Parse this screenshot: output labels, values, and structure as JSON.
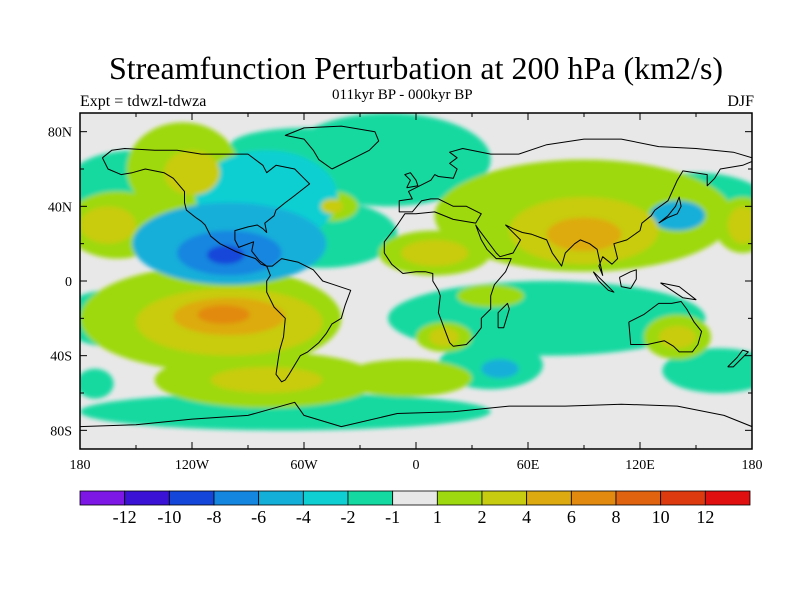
{
  "title": "Streamfunction Perturbation at 200 hPa (km2/s)",
  "subtitle": "011kyr BP - 000kyr BP",
  "left_label": "Expt = tdwzl-tdwza",
  "right_label": "DJF",
  "lat_ticks": [
    "80N",
    "40N",
    "0",
    "40S",
    "80S"
  ],
  "lon_ticks": [
    "180",
    "120W",
    "60W",
    "0",
    "60E",
    "120E",
    "180"
  ],
  "colorbar": {
    "colors": [
      "#7d17e6",
      "#3a12d6",
      "#1446d9",
      "#1486e0",
      "#14afd9",
      "#10cfd2",
      "#14d9a0",
      "#e8e8e8",
      "#9ed90f",
      "#c8cc10",
      "#ddab10",
      "#e28a10",
      "#e06410",
      "#de3a10",
      "#e01010"
    ],
    "labels": [
      "-12",
      "-10",
      "-8",
      "-6",
      "-4",
      "-2",
      "-1",
      "1",
      "2",
      "4",
      "6",
      "8",
      "10",
      "12"
    ]
  },
  "field_blobs": [
    {
      "lon": -100,
      "lat": 20,
      "rx": 52,
      "ry": 22,
      "level": -4
    },
    {
      "lon": -100,
      "lat": 15,
      "rx": 28,
      "ry": 12,
      "level": -6
    },
    {
      "lon": -102,
      "lat": 14,
      "rx": 10,
      "ry": 5,
      "level": -8
    },
    {
      "lon": -80,
      "lat": 45,
      "rx": 38,
      "ry": 25,
      "level": -3
    },
    {
      "lon": -50,
      "lat": 25,
      "rx": 40,
      "ry": 18,
      "level": -2
    },
    {
      "lon": -150,
      "lat": 55,
      "rx": 35,
      "ry": 15,
      "level": -2
    },
    {
      "lon": -175,
      "lat": 48,
      "rx": 10,
      "ry": 12,
      "level": -2
    },
    {
      "lon": -15,
      "lat": 65,
      "rx": 55,
      "ry": 25,
      "level": -2
    },
    {
      "lon": -60,
      "lat": 72,
      "rx": 40,
      "ry": 10,
      "level": -2
    },
    {
      "lon": 70,
      "lat": -20,
      "rx": 85,
      "ry": 20,
      "level": -2
    },
    {
      "lon": 40,
      "lat": -45,
      "rx": 28,
      "ry": 13,
      "level": -2
    },
    {
      "lon": 45,
      "lat": -47,
      "rx": 10,
      "ry": 5,
      "level": -4
    },
    {
      "lon": 150,
      "lat": 40,
      "rx": 40,
      "ry": 18,
      "level": -2
    },
    {
      "lon": 140,
      "lat": 35,
      "rx": 15,
      "ry": 8,
      "level": -4
    },
    {
      "lon": 162,
      "lat": -48,
      "rx": 30,
      "ry": 12,
      "level": -2
    },
    {
      "lon": -165,
      "lat": -20,
      "rx": 25,
      "ry": 15,
      "level": -2
    },
    {
      "lon": -172,
      "lat": -55,
      "rx": 10,
      "ry": 8,
      "level": -2
    },
    {
      "lon": -70,
      "lat": -70,
      "rx": 110,
      "ry": 10,
      "level": -2
    },
    {
      "lon": -110,
      "lat": -20,
      "rx": 70,
      "ry": 28,
      "level": 2
    },
    {
      "lon": -100,
      "lat": -22,
      "rx": 50,
      "ry": 18,
      "level": 4
    },
    {
      "lon": -100,
      "lat": -19,
      "rx": 30,
      "ry": 10,
      "level": 6
    },
    {
      "lon": -103,
      "lat": -18,
      "rx": 14,
      "ry": 5,
      "level": 8
    },
    {
      "lon": -80,
      "lat": -53,
      "rx": 60,
      "ry": 15,
      "level": 2
    },
    {
      "lon": -80,
      "lat": -53,
      "rx": 30,
      "ry": 7,
      "level": 4
    },
    {
      "lon": -140,
      "lat": -38,
      "rx": 15,
      "ry": 6,
      "level": 2
    },
    {
      "lon": -125,
      "lat": 60,
      "rx": 30,
      "ry": 25,
      "level": 2
    },
    {
      "lon": -120,
      "lat": 58,
      "rx": 15,
      "ry": 12,
      "level": 4
    },
    {
      "lon": -160,
      "lat": 30,
      "rx": 28,
      "ry": 18,
      "level": 2
    },
    {
      "lon": -165,
      "lat": 30,
      "rx": 15,
      "ry": 10,
      "level": 4
    },
    {
      "lon": -45,
      "lat": 40,
      "rx": 14,
      "ry": 8,
      "level": 2
    },
    {
      "lon": -45,
      "lat": 40,
      "rx": 6,
      "ry": 4,
      "level": 4
    },
    {
      "lon": 10,
      "lat": 15,
      "rx": 30,
      "ry": 12,
      "level": 2
    },
    {
      "lon": 10,
      "lat": 15,
      "rx": 18,
      "ry": 7,
      "level": 4
    },
    {
      "lon": 90,
      "lat": 35,
      "rx": 80,
      "ry": 30,
      "level": 2
    },
    {
      "lon": 90,
      "lat": 27,
      "rx": 40,
      "ry": 18,
      "level": 4
    },
    {
      "lon": 90,
      "lat": 25,
      "rx": 20,
      "ry": 9,
      "level": 6
    },
    {
      "lon": 15,
      "lat": -30,
      "rx": 15,
      "ry": 8,
      "level": 2
    },
    {
      "lon": 15,
      "lat": -30,
      "rx": 8,
      "ry": 5,
      "level": 4
    },
    {
      "lon": 140,
      "lat": -30,
      "rx": 18,
      "ry": 12,
      "level": 2
    },
    {
      "lon": 140,
      "lat": -30,
      "rx": 10,
      "ry": 6,
      "level": 4
    },
    {
      "lon": -5,
      "lat": -52,
      "rx": 35,
      "ry": 10,
      "level": 2
    },
    {
      "lon": 175,
      "lat": 30,
      "rx": 15,
      "ry": 15,
      "level": 2
    },
    {
      "lon": 175,
      "lat": 30,
      "rx": 8,
      "ry": 10,
      "level": 4
    },
    {
      "lon": 40,
      "lat": -8,
      "rx": 18,
      "ry": 6,
      "level": 2
    }
  ],
  "coastlines": {
    "north_america": [
      [
        -168,
        66
      ],
      [
        -163,
        70
      ],
      [
        -156,
        71
      ],
      [
        -140,
        70
      ],
      [
        -128,
        70
      ],
      [
        -115,
        68
      ],
      [
        -100,
        68
      ],
      [
        -90,
        68
      ],
      [
        -82,
        62
      ],
      [
        -80,
        58
      ],
      [
        -75,
        62
      ],
      [
        -65,
        60
      ],
      [
        -60,
        55
      ],
      [
        -57,
        52
      ],
      [
        -66,
        45
      ],
      [
        -70,
        42
      ],
      [
        -75,
        38
      ],
      [
        -76,
        35
      ],
      [
        -81,
        31
      ],
      [
        -80,
        26
      ],
      [
        -82,
        28
      ],
      [
        -85,
        30
      ],
      [
        -90,
        29
      ],
      [
        -97,
        27
      ],
      [
        -97,
        22
      ],
      [
        -95,
        18
      ],
      [
        -87,
        21
      ],
      [
        -88,
        16
      ],
      [
        -84,
        11
      ],
      [
        -80,
        8
      ],
      [
        -83,
        9
      ],
      [
        -86,
        12
      ],
      [
        -92,
        14
      ],
      [
        -97,
        16
      ],
      [
        -105,
        20
      ],
      [
        -110,
        24
      ],
      [
        -113,
        30
      ],
      [
        -115,
        32
      ],
      [
        -118,
        34
      ],
      [
        -123,
        38
      ],
      [
        -124,
        42
      ],
      [
        -124,
        48
      ],
      [
        -130,
        55
      ],
      [
        -135,
        58
      ],
      [
        -145,
        60
      ],
      [
        -152,
        58
      ],
      [
        -158,
        57
      ],
      [
        -165,
        60
      ],
      [
        -168,
        66
      ]
    ],
    "greenland": [
      [
        -45,
        60
      ],
      [
        -52,
        65
      ],
      [
        -55,
        70
      ],
      [
        -60,
        76
      ],
      [
        -70,
        78
      ],
      [
        -60,
        82
      ],
      [
        -40,
        83
      ],
      [
        -22,
        80
      ],
      [
        -20,
        75
      ],
      [
        -25,
        70
      ],
      [
        -35,
        65
      ],
      [
        -45,
        60
      ]
    ],
    "south_america": [
      [
        -80,
        8
      ],
      [
        -77,
        8
      ],
      [
        -72,
        12
      ],
      [
        -63,
        10
      ],
      [
        -55,
        6
      ],
      [
        -50,
        0
      ],
      [
        -44,
        -2
      ],
      [
        -35,
        -5
      ],
      [
        -38,
        -13
      ],
      [
        -40,
        -20
      ],
      [
        -45,
        -23
      ],
      [
        -48,
        -28
      ],
      [
        -52,
        -33
      ],
      [
        -58,
        -38
      ],
      [
        -62,
        -40
      ],
      [
        -65,
        -45
      ],
      [
        -68,
        -50
      ],
      [
        -70,
        -53
      ],
      [
        -72,
        -54
      ],
      [
        -75,
        -50
      ],
      [
        -74,
        -43
      ],
      [
        -73,
        -37
      ],
      [
        -71,
        -30
      ],
      [
        -70,
        -20
      ],
      [
        -76,
        -14
      ],
      [
        -80,
        -6
      ],
      [
        -80,
        0
      ],
      [
        -78,
        3
      ],
      [
        -80,
        8
      ]
    ],
    "africa_eurasia": [
      [
        -17,
        15
      ],
      [
        -17,
        21
      ],
      [
        -10,
        30
      ],
      [
        -6,
        36
      ],
      [
        0,
        36
      ],
      [
        10,
        37
      ],
      [
        20,
        33
      ],
      [
        32,
        31
      ],
      [
        35,
        36
      ],
      [
        27,
        40
      ],
      [
        20,
        40
      ],
      [
        12,
        44
      ],
      [
        8,
        44
      ],
      [
        3,
        43
      ],
      [
        -2,
        37
      ],
      [
        -9,
        37
      ],
      [
        -9,
        43
      ],
      [
        -2,
        44
      ],
      [
        -4,
        48
      ],
      [
        2,
        51
      ],
      [
        8,
        54
      ],
      [
        10,
        57
      ],
      [
        12,
        56
      ],
      [
        20,
        55
      ],
      [
        22,
        60
      ],
      [
        18,
        63
      ],
      [
        22,
        66
      ],
      [
        18,
        69
      ],
      [
        25,
        71
      ],
      [
        40,
        68
      ],
      [
        55,
        68
      ],
      [
        70,
        73
      ],
      [
        90,
        76
      ],
      [
        110,
        76
      ],
      [
        130,
        72
      ],
      [
        150,
        71
      ],
      [
        170,
        69
      ],
      [
        180,
        66
      ],
      [
        180,
        64
      ],
      [
        175,
        62
      ],
      [
        163,
        60
      ],
      [
        160,
        55
      ],
      [
        156,
        51
      ],
      [
        156,
        57
      ],
      [
        143,
        59
      ],
      [
        140,
        54
      ],
      [
        135,
        43
      ],
      [
        128,
        38
      ],
      [
        126,
        35
      ],
      [
        121,
        31
      ],
      [
        120,
        27
      ],
      [
        113,
        22
      ],
      [
        106,
        20
      ],
      [
        108,
        12
      ],
      [
        105,
        9
      ],
      [
        100,
        13
      ],
      [
        98,
        8
      ],
      [
        100,
        3
      ],
      [
        97,
        17
      ],
      [
        93,
        20
      ],
      [
        88,
        22
      ],
      [
        85,
        20
      ],
      [
        80,
        15
      ],
      [
        78,
        8
      ],
      [
        73,
        15
      ],
      [
        70,
        22
      ],
      [
        62,
        25
      ],
      [
        57,
        26
      ],
      [
        52,
        28
      ],
      [
        48,
        30
      ],
      [
        54,
        24
      ],
      [
        56,
        22
      ],
      [
        52,
        15
      ],
      [
        45,
        13
      ],
      [
        43,
        15
      ],
      [
        34,
        27
      ],
      [
        32,
        30
      ],
      [
        35,
        22
      ],
      [
        38,
        17
      ],
      [
        43,
        12
      ],
      [
        51,
        12
      ],
      [
        48,
        5
      ],
      [
        42,
        -2
      ],
      [
        40,
        -8
      ],
      [
        40,
        -15
      ],
      [
        35,
        -20
      ],
      [
        35,
        -25
      ],
      [
        32,
        -29
      ],
      [
        27,
        -34
      ],
      [
        20,
        -35
      ],
      [
        18,
        -33
      ],
      [
        15,
        -25
      ],
      [
        12,
        -17
      ],
      [
        13,
        -8
      ],
      [
        12,
        -5
      ],
      [
        9,
        0
      ],
      [
        9,
        4
      ],
      [
        5,
        5
      ],
      [
        0,
        5
      ],
      [
        -7,
        4
      ],
      [
        -13,
        9
      ],
      [
        -17,
        15
      ]
    ],
    "australia": [
      [
        114,
        -22
      ],
      [
        122,
        -18
      ],
      [
        130,
        -12
      ],
      [
        137,
        -12
      ],
      [
        142,
        -11
      ],
      [
        145,
        -15
      ],
      [
        149,
        -22
      ],
      [
        153,
        -27
      ],
      [
        151,
        -34
      ],
      [
        148,
        -38
      ],
      [
        141,
        -38
      ],
      [
        138,
        -35
      ],
      [
        133,
        -32
      ],
      [
        124,
        -34
      ],
      [
        115,
        -34
      ],
      [
        114,
        -22
      ]
    ],
    "antarctica": [
      [
        -180,
        -78
      ],
      [
        -150,
        -77
      ],
      [
        -120,
        -74
      ],
      [
        -90,
        -72
      ],
      [
        -65,
        -65
      ],
      [
        -60,
        -72
      ],
      [
        -40,
        -78
      ],
      [
        -10,
        -71
      ],
      [
        20,
        -70
      ],
      [
        50,
        -67
      ],
      [
        80,
        -67
      ],
      [
        110,
        -66
      ],
      [
        140,
        -67
      ],
      [
        165,
        -72
      ],
      [
        180,
        -78
      ]
    ],
    "uk": [
      [
        -5,
        50
      ],
      [
        1,
        51
      ],
      [
        0,
        54
      ],
      [
        -3,
        58
      ],
      [
        -6,
        57
      ],
      [
        -3,
        54
      ],
      [
        -5,
        50
      ]
    ],
    "japan": [
      [
        130,
        31
      ],
      [
        135,
        34
      ],
      [
        140,
        36
      ],
      [
        142,
        40
      ],
      [
        141,
        45
      ],
      [
        139,
        40
      ],
      [
        135,
        35
      ],
      [
        130,
        31
      ]
    ],
    "madagascar": [
      [
        44,
        -25
      ],
      [
        47,
        -25
      ],
      [
        50,
        -15
      ],
      [
        49,
        -12
      ],
      [
        44,
        -17
      ],
      [
        44,
        -25
      ]
    ],
    "new_zealand": [
      [
        167,
        -46
      ],
      [
        172,
        -41
      ],
      [
        175,
        -37
      ],
      [
        178,
        -38
      ],
      [
        174,
        -42
      ],
      [
        170,
        -46
      ],
      [
        167,
        -46
      ]
    ],
    "borneo": [
      [
        109,
        2
      ],
      [
        115,
        5
      ],
      [
        118,
        6
      ],
      [
        118,
        1
      ],
      [
        115,
        -4
      ],
      [
        110,
        -3
      ],
      [
        109,
        2
      ]
    ],
    "sumatra": [
      [
        95,
        5
      ],
      [
        100,
        0
      ],
      [
        106,
        -6
      ],
      [
        103,
        -5
      ],
      [
        98,
        0
      ],
      [
        95,
        5
      ]
    ],
    "new_guinea": [
      [
        131,
        -1
      ],
      [
        141,
        -3
      ],
      [
        150,
        -10
      ],
      [
        143,
        -9
      ],
      [
        137,
        -5
      ],
      [
        131,
        -1
      ]
    ]
  }
}
